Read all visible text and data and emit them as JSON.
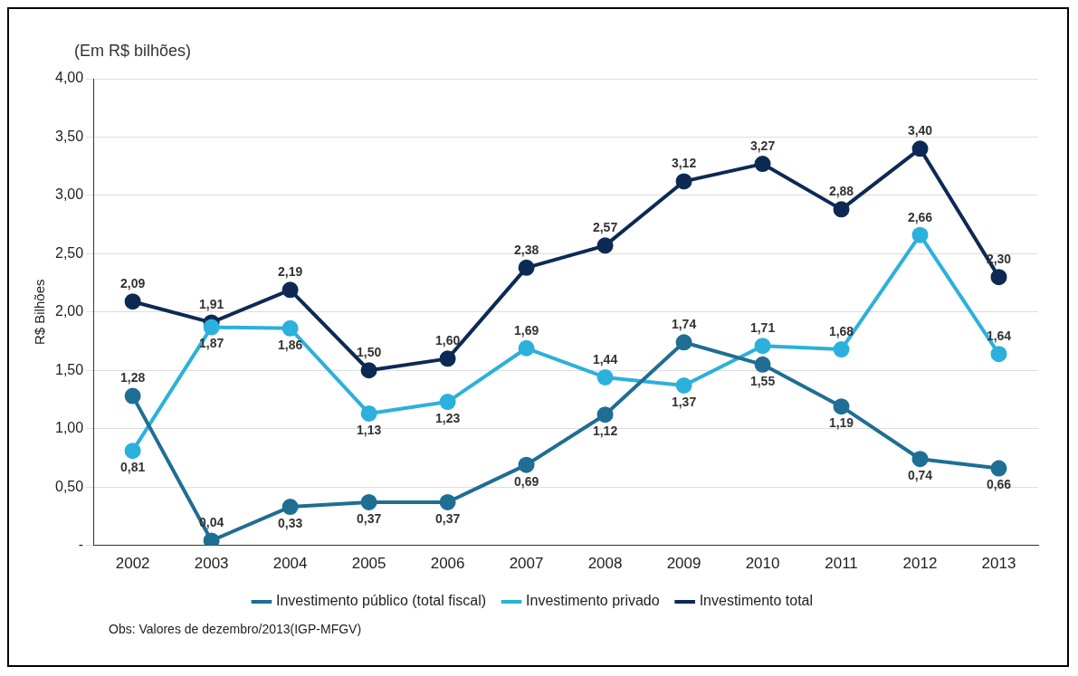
{
  "chart_data": {
    "type": "line",
    "ylabel": "R$ Bilhões",
    "annotations": [
      "(Em R$ bilhões)",
      "Obs: Valores de dezembro/2013(IGP-MFGV)"
    ],
    "categories": [
      "2002",
      "2003",
      "2004",
      "2005",
      "2006",
      "2007",
      "2008",
      "2009",
      "2010",
      "2011",
      "2012",
      "2013"
    ],
    "series": [
      {
        "name": "Investimento público (total fiscal)",
        "color": "#1f6e93",
        "values": [
          1.28,
          0.04,
          0.33,
          0.37,
          0.37,
          0.69,
          1.12,
          1.74,
          1.55,
          1.19,
          0.74,
          0.66
        ],
        "value_labels": [
          "1,28",
          "0,04",
          "0,33",
          "0,37",
          "0,37",
          "0,69",
          "1,12",
          "1,74",
          "1,55",
          "1,19",
          "0,74",
          "0,66"
        ]
      },
      {
        "name": "Investimento privado",
        "color": "#2cb0dc",
        "values": [
          0.81,
          1.87,
          1.86,
          1.13,
          1.23,
          1.69,
          1.44,
          1.37,
          1.71,
          1.68,
          2.66,
          1.64
        ],
        "value_labels": [
          "0,81",
          "1,87",
          "1,86",
          "1,13",
          "1,23",
          "1,69",
          "1,44",
          "1,37",
          "1,71",
          "1,68",
          "2,66",
          "1,64"
        ]
      },
      {
        "name": "Investimento total",
        "color": "#0d2a55",
        "values": [
          2.09,
          1.91,
          2.19,
          1.5,
          1.6,
          2.38,
          2.57,
          3.12,
          3.27,
          2.88,
          3.4,
          2.3
        ],
        "value_labels": [
          "2,09",
          "1,91",
          "2,19",
          "1,50",
          "1,60",
          "2,38",
          "2,57",
          "3,12",
          "3,27",
          "2,88",
          "3,40",
          "2,30"
        ]
      }
    ],
    "ylim": [
      0,
      4
    ],
    "yticks": [
      {
        "value": 0,
        "label": "-"
      },
      {
        "value": 0.5,
        "label": "0,50"
      },
      {
        "value": 1,
        "label": "1,00"
      },
      {
        "value": 1.5,
        "label": "1,50"
      },
      {
        "value": 2,
        "label": "2,00"
      },
      {
        "value": 2.5,
        "label": "2,50"
      },
      {
        "value": 3,
        "label": "3,00"
      },
      {
        "value": 3.5,
        "label": "3,50"
      },
      {
        "value": 4,
        "label": "4,00"
      }
    ],
    "grid": "y",
    "legend": "bottom",
    "marker": "circle",
    "line_style": "solid"
  }
}
